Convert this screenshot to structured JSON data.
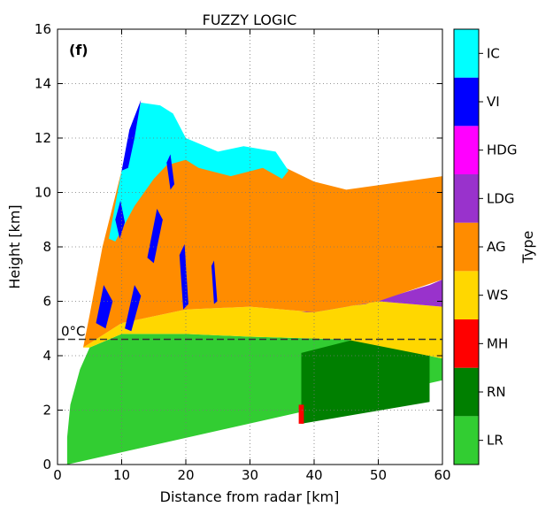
{
  "chart_data": {
    "type": "heatmap",
    "title": "FUZZY LOGIC",
    "panel_label": "(f)",
    "xlabel": "Distance from radar [km]",
    "ylabel": "Height [km]",
    "xlim": [
      0,
      60
    ],
    "ylim": [
      0,
      16
    ],
    "x_ticks": [
      "0",
      "10",
      "20",
      "30",
      "40",
      "50",
      "60"
    ],
    "y_ticks": [
      "0",
      "2",
      "4",
      "6",
      "8",
      "10",
      "12",
      "14",
      "16"
    ],
    "grid": true,
    "freezing_level": {
      "label": "0°C",
      "height_km": 4.6
    },
    "colorbar": {
      "label": "Type",
      "categories": [
        {
          "name": "LR",
          "color": "#32CD32"
        },
        {
          "name": "RN",
          "color": "#007F00"
        },
        {
          "name": "MH",
          "color": "#FF0000"
        },
        {
          "name": "WS",
          "color": "#FFD700"
        },
        {
          "name": "AG",
          "color": "#FF8C00"
        },
        {
          "name": "LDG",
          "color": "#9932CC"
        },
        {
          "name": "HDG",
          "color": "#FF00FF"
        },
        {
          "name": "VI",
          "color": "#0000FF"
        },
        {
          "name": "IC",
          "color": "#00FFFF"
        }
      ]
    },
    "regions": [
      {
        "type": "LR",
        "polygon": [
          [
            1.5,
            0
          ],
          [
            60,
            3.1
          ],
          [
            60,
            3.9
          ],
          [
            45,
            4.6
          ],
          [
            30,
            4.7
          ],
          [
            20,
            4.8
          ],
          [
            10,
            4.8
          ],
          [
            5,
            4.3
          ],
          [
            3.5,
            3.5
          ],
          [
            2,
            2.2
          ],
          [
            1.5,
            1.0
          ]
        ]
      },
      {
        "type": "RN",
        "polygon": [
          [
            38,
            1.5
          ],
          [
            58,
            2.3
          ],
          [
            58,
            4.2
          ],
          [
            48,
            4.7
          ],
          [
            38,
            4.1
          ]
        ]
      },
      {
        "type": "MH",
        "polygon": [
          [
            37.6,
            1.5
          ],
          [
            38.4,
            1.5
          ],
          [
            38.4,
            2.2
          ],
          [
            37.6,
            2.2
          ]
        ]
      },
      {
        "type": "WS",
        "polygon": [
          [
            5,
            4.3
          ],
          [
            10,
            4.8
          ],
          [
            20,
            4.8
          ],
          [
            30,
            4.7
          ],
          [
            45,
            4.6
          ],
          [
            60,
            3.9
          ],
          [
            60,
            5.8
          ],
          [
            50,
            6.0
          ],
          [
            40,
            5.6
          ],
          [
            30,
            5.8
          ],
          [
            20,
            5.7
          ],
          [
            10,
            5.2
          ],
          [
            4,
            4.3
          ]
        ]
      },
      {
        "type": "LDG",
        "polygon": [
          [
            38,
            5.6
          ],
          [
            48,
            5.9
          ],
          [
            58,
            6.6
          ],
          [
            60,
            6.8
          ],
          [
            60,
            5.8
          ],
          [
            50,
            6.0
          ],
          [
            40,
            5.6
          ]
        ]
      },
      {
        "type": "AG",
        "polygon": [
          [
            4,
            4.3
          ],
          [
            10,
            5.2
          ],
          [
            20,
            5.7
          ],
          [
            30,
            5.8
          ],
          [
            40,
            5.6
          ],
          [
            50,
            6.0
          ],
          [
            60,
            6.8
          ],
          [
            60,
            10.6
          ],
          [
            45,
            10.1
          ],
          [
            40,
            10.4
          ],
          [
            33,
            11.2
          ],
          [
            25,
            11.3
          ],
          [
            21,
            11.3
          ],
          [
            17,
            12.9
          ],
          [
            13,
            13.3
          ],
          [
            10,
            10.8
          ],
          [
            7,
            8.0
          ],
          [
            5,
            5.5
          ]
        ]
      },
      {
        "type": "IC",
        "polygon": [
          [
            8,
            8.3
          ],
          [
            10,
            10.8
          ],
          [
            13,
            13.3
          ],
          [
            16,
            13.2
          ],
          [
            18,
            12.9
          ],
          [
            20,
            12.0
          ],
          [
            25,
            11.5
          ],
          [
            29,
            11.7
          ],
          [
            34,
            11.5
          ],
          [
            36,
            10.8
          ],
          [
            35,
            10.5
          ],
          [
            32,
            10.9
          ],
          [
            27,
            10.6
          ],
          [
            22,
            10.9
          ],
          [
            20,
            11.2
          ],
          [
            17,
            11.0
          ],
          [
            15,
            10.5
          ],
          [
            12,
            9.5
          ],
          [
            9,
            8.2
          ]
        ]
      },
      {
        "type": "VI",
        "polygon": [
          [
            10,
            10.8
          ],
          [
            11.2,
            12.3
          ],
          [
            13,
            13.4
          ],
          [
            12,
            12.0
          ],
          [
            11,
            10.9
          ]
        ]
      },
      {
        "type": "VI",
        "polygon": [
          [
            6,
            5.2
          ],
          [
            7.2,
            6.6
          ],
          [
            8.6,
            6.0
          ],
          [
            7.5,
            5.0
          ]
        ]
      },
      {
        "type": "VI",
        "polygon": [
          [
            10.5,
            5.0
          ],
          [
            12,
            6.6
          ],
          [
            13,
            6.2
          ],
          [
            11.5,
            4.9
          ]
        ]
      },
      {
        "type": "VI",
        "polygon": [
          [
            14,
            7.6
          ],
          [
            15.5,
            9.4
          ],
          [
            16.4,
            9.0
          ],
          [
            15,
            7.4
          ]
        ]
      },
      {
        "type": "VI",
        "polygon": [
          [
            19,
            7.7
          ],
          [
            19.8,
            8.1
          ],
          [
            20.4,
            5.9
          ],
          [
            19.6,
            5.7
          ]
        ]
      },
      {
        "type": "VI",
        "polygon": [
          [
            17,
            11.1
          ],
          [
            17.6,
            11.4
          ],
          [
            18.2,
            10.3
          ],
          [
            17.6,
            10.1
          ]
        ]
      },
      {
        "type": "VI",
        "polygon": [
          [
            9,
            9.0
          ],
          [
            9.8,
            9.7
          ],
          [
            10.5,
            8.9
          ],
          [
            9.7,
            8.3
          ]
        ]
      },
      {
        "type": "VI",
        "polygon": [
          [
            24,
            7.3
          ],
          [
            24.4,
            7.5
          ],
          [
            24.9,
            6.0
          ],
          [
            24.4,
            5.9
          ]
        ]
      }
    ]
  }
}
